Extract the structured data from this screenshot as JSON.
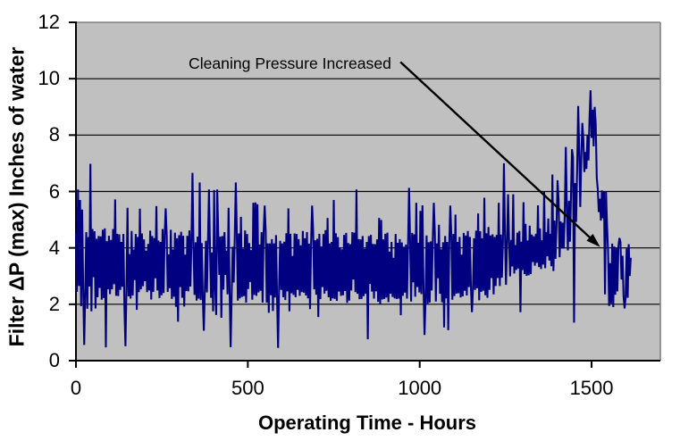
{
  "chart_data": {
    "type": "line",
    "title": "",
    "xlabel": "Operating Time - Hours",
    "ylabel": "Filter ΔP (max) Inches of water",
    "xlim": [
      0,
      1700
    ],
    "ylim": [
      0,
      12
    ],
    "x_ticks": [
      0,
      500,
      1000,
      1500
    ],
    "y_ticks": [
      0,
      2,
      4,
      6,
      8,
      10,
      12
    ],
    "grid": "horizontal-major",
    "legend": "none",
    "colors": {
      "series": "#000080",
      "plot_bg": "#c0c0c0",
      "page_bg": "#ffffff",
      "gridline": "#000000",
      "axis": "#000000",
      "plot_border": "#808080",
      "text": "#000000"
    },
    "annotation": {
      "text": "Cleaning Pressure Increased",
      "arrow_from_x": 944,
      "arrow_from_y": 10.59,
      "arrow_to_x": 1525,
      "arrow_to_y": 4.03
    },
    "series": [
      {
        "x": [
          0,
          3,
          6,
          9,
          12,
          15,
          18,
          21,
          24,
          27,
          30,
          33,
          36,
          39,
          42,
          45,
          48,
          51,
          54,
          57,
          60,
          63,
          66,
          69,
          72,
          75,
          78,
          81,
          84,
          87,
          90,
          93,
          96,
          99,
          102,
          105,
          108,
          111,
          114,
          117,
          120,
          123,
          126,
          129,
          132,
          135,
          138,
          141,
          144,
          147,
          150,
          153,
          156,
          159,
          162,
          165,
          168,
          171,
          174,
          177,
          180,
          183,
          186,
          189,
          192,
          195,
          198,
          201,
          204,
          207,
          210,
          213,
          216,
          219,
          222,
          225,
          228,
          231,
          234,
          237,
          240,
          243,
          246,
          249,
          252,
          255,
          258,
          261,
          264,
          267,
          270,
          273,
          276,
          279,
          282,
          285,
          288,
          291,
          294,
          297,
          300,
          303,
          306,
          309,
          312,
          315,
          318,
          321,
          324,
          327,
          330,
          333,
          336,
          339,
          342,
          345,
          348,
          351,
          354,
          357,
          360,
          363,
          366,
          369,
          372,
          375,
          378,
          381,
          384,
          387,
          390,
          393,
          396,
          399,
          402,
          405,
          408,
          411,
          414,
          417,
          420,
          423,
          426,
          429,
          432,
          435,
          438,
          441,
          444,
          447,
          450,
          453,
          456,
          459,
          462,
          465,
          468,
          471,
          474,
          477,
          480,
          483,
          486,
          489,
          492,
          495,
          498,
          501,
          504,
          507,
          510,
          513,
          516,
          519,
          522,
          525,
          528,
          531,
          534,
          537,
          540,
          543,
          546,
          549,
          552,
          555,
          558,
          561,
          564,
          567,
          570,
          573,
          576,
          579,
          582,
          585,
          588,
          591,
          594,
          597,
          600,
          603,
          606,
          609,
          612,
          615,
          618,
          621,
          624,
          627,
          630,
          633,
          636,
          639,
          642,
          645,
          648,
          651,
          654,
          657,
          660,
          663,
          666,
          669,
          672,
          675,
          678,
          681,
          684,
          687,
          690,
          693,
          696,
          699,
          702,
          705,
          708,
          711,
          714,
          717,
          720,
          723,
          726,
          729,
          732,
          735,
          738,
          741,
          744,
          747,
          750,
          753,
          756,
          759,
          762,
          765,
          768,
          771,
          774,
          777,
          780,
          783,
          786,
          789,
          792,
          795,
          798,
          801,
          804,
          807,
          810,
          813,
          816,
          819,
          822,
          825,
          828,
          831,
          834,
          837,
          840,
          843,
          846,
          849,
          852,
          855,
          858,
          861,
          864,
          867,
          870,
          873,
          876,
          879,
          882,
          885,
          888,
          891,
          894,
          897,
          900,
          903,
          906,
          909,
          912,
          915,
          918,
          921,
          924,
          927,
          930,
          933,
          936,
          939,
          942,
          945,
          948,
          951,
          954,
          957,
          960,
          963,
          966,
          969,
          972,
          975,
          978,
          981,
          984,
          987,
          990,
          993,
          996,
          999,
          1002,
          1005,
          1008,
          1011,
          1014,
          1017,
          1020,
          1023,
          1026,
          1029,
          1032,
          1035,
          1038,
          1041,
          1044,
          1047,
          1050,
          1053,
          1056,
          1059,
          1062,
          1065,
          1068,
          1071,
          1074,
          1077,
          1080,
          1083,
          1086,
          1089,
          1092,
          1095,
          1098,
          1101,
          1104,
          1107,
          1110,
          1113,
          1116,
          1119,
          1122,
          1125,
          1128,
          1131,
          1134,
          1137,
          1140,
          1143,
          1146,
          1149,
          1152,
          1155,
          1158,
          1161,
          1164,
          1167,
          1170,
          1173,
          1176,
          1179,
          1182,
          1185,
          1188,
          1191,
          1194,
          1197,
          1200,
          1203,
          1206,
          1209,
          1212,
          1215,
          1218,
          1221,
          1224,
          1227,
          1230,
          1233,
          1236,
          1239,
          1242,
          1245,
          1248,
          1251,
          1254,
          1257,
          1260,
          1263,
          1266,
          1269,
          1272,
          1275,
          1278,
          1281,
          1284,
          1287,
          1290,
          1293,
          1296,
          1299,
          1302,
          1305,
          1308,
          1311,
          1314,
          1317,
          1320,
          1323,
          1326,
          1329,
          1332,
          1335,
          1338,
          1341,
          1344,
          1347,
          1350,
          1353,
          1356,
          1359,
          1362,
          1365,
          1368,
          1371,
          1374,
          1377,
          1380,
          1383,
          1386,
          1389,
          1392,
          1395,
          1398,
          1401,
          1404,
          1407,
          1410,
          1413,
          1416,
          1419,
          1422,
          1425,
          1428,
          1431,
          1434,
          1437,
          1440,
          1443,
          1446,
          1449,
          1452,
          1455,
          1458,
          1461,
          1464,
          1467,
          1470,
          1473,
          1476,
          1479,
          1482,
          1485,
          1488,
          1491,
          1494,
          1497,
          1500,
          1503,
          1506,
          1509,
          1512,
          1515,
          1518,
          1521,
          1524,
          1527,
          1530,
          1533,
          1536,
          1539,
          1542,
          1545,
          1548,
          1551,
          1554,
          1557,
          1560,
          1563,
          1566,
          1569,
          1572,
          1575,
          1578,
          1581,
          1584,
          1587,
          1590,
          1593,
          1596,
          1599,
          1602,
          1605,
          1608,
          1611,
          1614
        ],
        "y": [
          4.53,
          2.44,
          6.07,
          2.65,
          5.7,
          1.93,
          5.36,
          2.59,
          0.56,
          2.42,
          4.56,
          1.84,
          4.38,
          2.63,
          6.98,
          1.75,
          4.67,
          2.96,
          4.59,
          1.85,
          4.32,
          2.25,
          4.42,
          2.58,
          4.41,
          2.16,
          4.64,
          2.22,
          4.69,
          0.47,
          4.24,
          2.53,
          4.43,
          2.36,
          4.28,
          2.53,
          4.67,
          2.71,
          5.72,
          2.3,
          4.5,
          2.29,
          4.48,
          2.51,
          4.21,
          2.62,
          4.49,
          1.89,
          0.51,
          2.64,
          5.42,
          2.28,
          3.78,
          2.2,
          4.6,
          2.31,
          3.94,
          2.86,
          4.49,
          1.8,
          4.39,
          2.43,
          5.39,
          2.53,
          4.51,
          2.64,
          4.3,
          2.82,
          3.9,
          2.43,
          4.14,
          2.49,
          4.61,
          2.17,
          4.42,
          2.44,
          4.35,
          2.92,
          5.48,
          2.49,
          4.26,
          2.22,
          4.21,
          2.32,
          4.67,
          2.4,
          4.42,
          5.4,
          4.44,
          2.44,
          3.77,
          2.57,
          4.64,
          2.19,
          3.94,
          2.27,
          4.54,
          1.91,
          4.34,
          1.38,
          4.45,
          2.61,
          4.57,
          2.23,
          4.43,
          1.92,
          3.76,
          2.47,
          4.43,
          2.46,
          4.62,
          2.63,
          4.27,
          6.66,
          3.95,
          2.33,
          4.2,
          2.13,
          4.4,
          2.2,
          6.32,
          2.15,
          4.17,
          2.26,
          1.06,
          2.54,
          4.25,
          2.42,
          4.23,
          6.07,
          3.98,
          2.23,
          3.84,
          1.75,
          6.05,
          2.55,
          1.62,
          6.07,
          4.49,
          3.04,
          4.4,
          1.52,
          4.42,
          2.52,
          4.56,
          3.04,
          3.9,
          2.35,
          5.42,
          2.49,
          0.48,
          2.33,
          4.04,
          2.77,
          4.38,
          6.32,
          4.52,
          2.13,
          4.51,
          2.21,
          5.1,
          2.26,
          3.97,
          2.29,
          4.62,
          2.06,
          4.49,
          2.54,
          4.17,
          2.79,
          3.92,
          2.16,
          5.6,
          2.33,
          5.61,
          2.3,
          5.55,
          2.42,
          4.12,
          2.48,
          4.56,
          2.06,
          4.56,
          5.5,
          4.57,
          2.06,
          4.16,
          1.7,
          4.16,
          2.32,
          4.31,
          1.76,
          4.16,
          2.24,
          4.45,
          2.24,
          0.45,
          2.62,
          4.25,
          2.51,
          4.16,
          2.25,
          4.22,
          2.15,
          4.52,
          2.46,
          5.4,
          1.75,
          4.5,
          2.39,
          3.71,
          2.33,
          4.51,
          2.25,
          4.49,
          2.51,
          4.31,
          2.3,
          4.09,
          2.43,
          4.6,
          2.41,
          4.34,
          2.31,
          4.56,
          2.21,
          4.15,
          1.83,
          4.18,
          5.5,
          4.6,
          2.53,
          4.27,
          2.34,
          4.32,
          1.55,
          4.5,
          2.18,
          4.05,
          2.61,
          4.49,
          2.38,
          4.63,
          2.48,
          5.06,
          2.25,
          4.16,
          2.12,
          4.21,
          2.21,
          5.7,
          2.19,
          4.52,
          2.12,
          4.38,
          2.45,
          4.02,
          2.3,
          3.95,
          2.32,
          4.46,
          2.47,
          4.53,
          2.05,
          4.17,
          2.13,
          4.13,
          2.49,
          4.56,
          2.88,
          4.54,
          2.43,
          6.07,
          2.37,
          4.31,
          2.18,
          4.3,
          2.19,
          4.42,
          2.29,
          3.97,
          2.37,
          4.21,
          0.76,
          4.42,
          2.72,
          4.46,
          2.45,
          4.14,
          2.2,
          4.13,
          2.46,
          4.3,
          2.09,
          5.06,
          2.01,
          4.99,
          2.17,
          4.3,
          2.19,
          4.5,
          2.24,
          4.54,
          2.08,
          3.87,
          2.37,
          4.21,
          2.26,
          3.65,
          2.21,
          4.49,
          2.19,
          4.18,
          2.2,
          4.31,
          1.61,
          4.19,
          2.3,
          4.04,
          2.41,
          4.12,
          2.2,
          4.05,
          6.13,
          4.24,
          2.1,
          4.53,
          2.78,
          4.48,
          2.27,
          5.6,
          2.61,
          4.18,
          2.42,
          5.31,
          2.36,
          5.51,
          2.66,
          0.91,
          2.21,
          4.44,
          2.02,
          4.2,
          2.06,
          4.23,
          2.49,
          4.31,
          5.6,
          4.53,
          2.1,
          4.16,
          2.92,
          4.82,
          2.37,
          3.95,
          2.07,
          4.2,
          1.18,
          4.42,
          2.21,
          4.21,
          1.08,
          4.15,
          5.5,
          4.41,
          2.16,
          4.49,
          2.29,
          5.18,
          2.38,
          4.21,
          2.39,
          4.39,
          2.24,
          3.76,
          2.28,
          4.53,
          2.48,
          4.44,
          2.31,
          4.6,
          2.61,
          4.39,
          2.59,
          1.72,
          2.56,
          4.34,
          2.51,
          4.61,
          2.57,
          5.22,
          2.14,
          4.59,
          2.44,
          4.34,
          2.48,
          5.78,
          2.32,
          4.52,
          2.23,
          4.74,
          2.51,
          4.44,
          2.93,
          4.48,
          2.35,
          4.39,
          2.65,
          4.46,
          2.93,
          5.6,
          2.65,
          4.47,
          2.94,
          4.19,
          7.0,
          4.53,
          2.69,
          4.19,
          5.9,
          4.21,
          2.99,
          4.28,
          3.34,
          5.9,
          3.09,
          4.1,
          3.22,
          4.54,
          3.27,
          4.6,
          1.72,
          4.22,
          3.21,
          5.62,
          3.07,
          4.85,
          3.01,
          4.26,
          3.03,
          4.79,
          3.07,
          4.47,
          3.5,
          4.41,
          3.37,
          4.5,
          3.47,
          5.51,
          3.32,
          4.69,
          3.25,
          4.27,
          3.41,
          6.0,
          3.28,
          4.56,
          3.7,
          5.04,
          3.55,
          4.5,
          3.35,
          6.6,
          3.18,
          4.97,
          3.61,
          4.75,
          6.4,
          5.71,
          3.67,
          4.94,
          3.98,
          4.89,
          3.98,
          5.22,
          7.58,
          5.41,
          3.91,
          5.67,
          4.22,
          5.82,
          7.5,
          7.2,
          1.35,
          6.3,
          4.92,
          6.81,
          9.03,
          7.47,
          5.45,
          7.16,
          8.43,
          7.86,
          6.69,
          7.4,
          6.8,
          8.0,
          7.1,
          8.6,
          9.59,
          7.9,
          8.9,
          7.6,
          9.0,
          8.4,
          6.5,
          6.08,
          5.27,
          5.74,
          4.97,
          6.04,
          5.05,
          5.99,
          2.35,
          5.99,
          4.8,
          3.85,
          1.94,
          3.46,
          2.03,
          4.15,
          1.9,
          4.05,
          2.34,
          4.0,
          2.46,
          4.06,
          4.35,
          4.21,
          2.88,
          3.72,
          2.28,
          1.85,
          2.25,
          3.98,
          2.23,
          4.13,
          3.0,
          3.65
        ]
      }
    ]
  }
}
